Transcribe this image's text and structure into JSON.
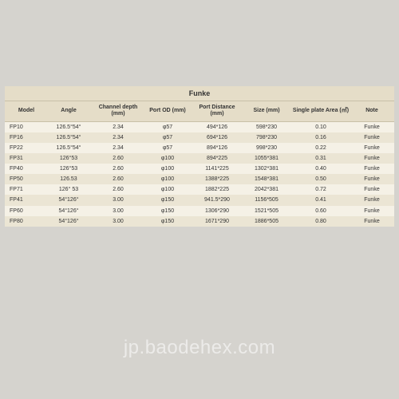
{
  "title": "Funke",
  "watermark": "jp.baodehex.com",
  "columns": [
    "Model",
    "Angle",
    "Channel depth (mm)",
    "Port OD (mm)",
    "Port Distance (mm)",
    "Size (mm)",
    "Single plate Area (㎡)",
    "Note"
  ],
  "rows": [
    [
      "FP10",
      "126.5°54°",
      "2.34",
      "φ57",
      "494*126",
      "598*230",
      "0.10",
      "Funke"
    ],
    [
      "FP16",
      "126.5°54°",
      "2.34",
      "φ57",
      "694*126",
      "798*230",
      "0.16",
      "Funke"
    ],
    [
      "FP22",
      "126.5°54°",
      "2.34",
      "φ57",
      "894*126",
      "998*230",
      "0.22",
      "Funke"
    ],
    [
      "FP31",
      "126°53",
      "2.60",
      "φ100",
      "894*225",
      "1055*381",
      "0.31",
      "Funke"
    ],
    [
      "FP40",
      "126°53",
      "2.60",
      "φ100",
      "1141*225",
      "1302*381",
      "0.40",
      "Funke"
    ],
    [
      "FP50",
      "126.53",
      "2.60",
      "φ100",
      "1388*225",
      "1548*381",
      "0.50",
      "Funke"
    ],
    [
      "FP71",
      "126° 53",
      "2.60",
      "φ100",
      "1882*225",
      "2042*381",
      "0.72",
      "Funke"
    ],
    [
      "FP41",
      "54°126°",
      "3.00",
      "φ150",
      "941.5*290",
      "1156*505",
      "0.41",
      "Funke"
    ],
    [
      "FP60",
      "54°126°",
      "3.00",
      "φ150",
      "1306*290",
      "1521*505",
      "0.60",
      "Funke"
    ],
    [
      "FP80",
      "54°126°",
      "3.00",
      "φ150",
      "1671*290",
      "1886*505",
      "0.80",
      "Funke"
    ]
  ]
}
